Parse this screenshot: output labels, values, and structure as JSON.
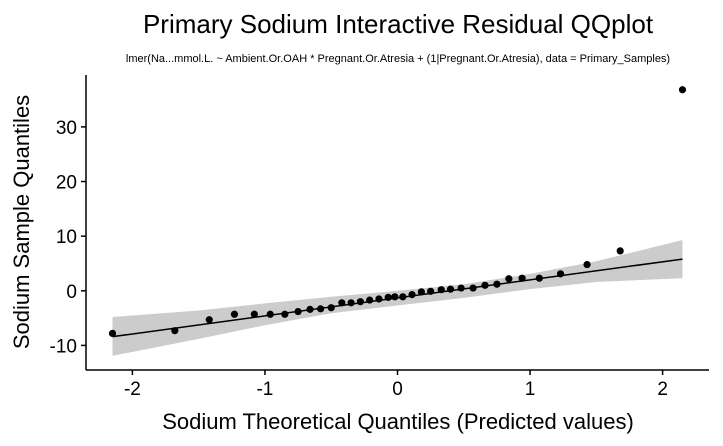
{
  "chart_data": {
    "type": "scatter",
    "title": "Primary Sodium Interactive Residual QQplot",
    "subtitle": "lmer(Na...mmol.L. ~ Ambient.Or.OAH * Pregnant.Or.Atresia + (1|Pregnant.Or.Atresia), data = Primary_Samples)",
    "xlabel": "Sodium Theoretical Quantiles (Predicted values)",
    "ylabel": "Sodium Sample Quantiles",
    "xlim": [
      -2.35,
      2.35
    ],
    "ylim": [
      -14.5,
      39.5
    ],
    "xticks": [
      -2,
      -1,
      0,
      1,
      2
    ],
    "xtick_labels": [
      "-2",
      "-1",
      "0",
      "1",
      "2"
    ],
    "yticks": [
      -10,
      0,
      10,
      20,
      30
    ],
    "ytick_labels": [
      "-10",
      "0",
      "10",
      "20",
      "30"
    ],
    "grid": false,
    "colors": {
      "points": "#000000",
      "line": "#000000",
      "band": "#cccccc"
    },
    "series": [
      {
        "kind": "points",
        "x": [
          -2.15,
          -1.68,
          -1.42,
          -1.23,
          -1.08,
          -0.96,
          -0.85,
          -0.75,
          -0.66,
          -0.58,
          -0.5,
          -0.42,
          -0.35,
          -0.28,
          -0.21,
          -0.14,
          -0.07,
          -0.02,
          0.04,
          0.11,
          0.18,
          0.25,
          0.33,
          0.4,
          0.48,
          0.57,
          0.66,
          0.75,
          0.84,
          0.94,
          1.07,
          1.23,
          1.43,
          1.68,
          2.15
        ],
        "y": [
          -7.8,
          -7.3,
          -5.3,
          -4.3,
          -4.3,
          -4.3,
          -4.3,
          -3.8,
          -3.4,
          -3.3,
          -3.1,
          -2.2,
          -2.2,
          -2.0,
          -1.7,
          -1.5,
          -1.2,
          -1.1,
          -1.1,
          -0.7,
          -0.2,
          -0.1,
          0.2,
          0.3,
          0.5,
          0.5,
          1.0,
          1.2,
          2.2,
          2.3,
          2.3,
          3.1,
          4.8,
          7.3,
          36.8
        ]
      },
      {
        "kind": "line",
        "x": [
          -2.15,
          2.15
        ],
        "y": [
          -8.4,
          5.8
        ]
      },
      {
        "kind": "band",
        "x": [
          -2.15,
          -1.5,
          -1.0,
          -0.5,
          0.0,
          0.5,
          1.0,
          1.5,
          2.15
        ],
        "lower": [
          -11.9,
          -8.8,
          -6.3,
          -4.1,
          -2.7,
          -1.3,
          0.3,
          1.6,
          2.3
        ],
        "upper": [
          -4.8,
          -3.6,
          -2.3,
          -1.1,
          0.0,
          1.2,
          3.1,
          5.4,
          9.3
        ]
      }
    ]
  }
}
